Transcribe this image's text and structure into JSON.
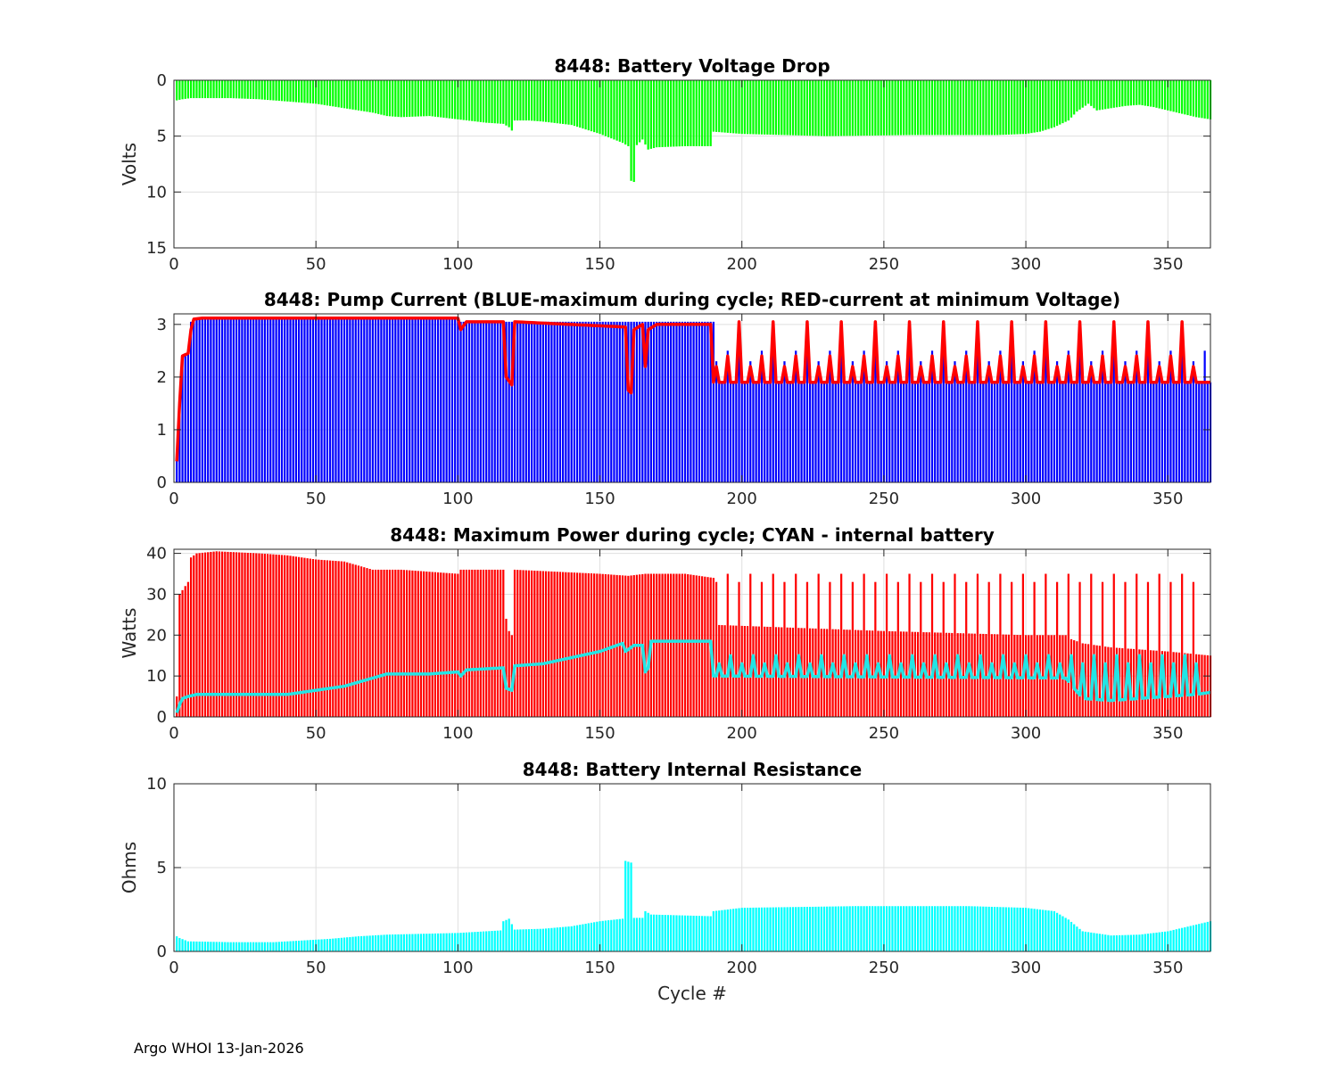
{
  "footer": "Argo WHOI 13-Jan-2026",
  "colors": {
    "green": "#00ff00",
    "blue": "#0000ff",
    "red": "#ff0000",
    "cyan": "#00ffff",
    "cyan_line": "#22e5e5",
    "axis": "#262626",
    "grid": "#dfdfdf"
  },
  "chart_data": [
    {
      "id": "voltage",
      "type": "bar",
      "title": "8448: Battery Voltage Drop",
      "xlabel": "",
      "ylabel": "Volts",
      "xlim": [
        0,
        365
      ],
      "ylim": [
        0,
        15
      ],
      "y_reversed": true,
      "xticks": [
        0,
        50,
        100,
        150,
        200,
        250,
        300,
        350
      ],
      "yticks": [
        0,
        5,
        10,
        15
      ],
      "grid": true,
      "series": [
        {
          "name": "Voltage drop",
          "color": "#00ff00",
          "style": "bar",
          "note": "value at every cycle 1-365, linear interpolation between points",
          "points": [
            [
              1,
              1.8
            ],
            [
              3,
              1.7
            ],
            [
              6,
              1.6
            ],
            [
              10,
              1.6
            ],
            [
              20,
              1.6
            ],
            [
              30,
              1.7
            ],
            [
              40,
              1.9
            ],
            [
              50,
              2.1
            ],
            [
              55,
              2.3
            ],
            [
              60,
              2.5
            ],
            [
              70,
              2.9
            ],
            [
              75,
              3.2
            ],
            [
              80,
              3.3
            ],
            [
              90,
              3.2
            ],
            [
              100,
              3.5
            ],
            [
              110,
              3.8
            ],
            [
              116,
              3.9
            ],
            [
              118,
              4.2
            ],
            [
              119,
              4.5
            ],
            [
              120,
              3.6
            ],
            [
              125,
              3.6
            ],
            [
              130,
              3.7
            ],
            [
              140,
              4.0
            ],
            [
              150,
              4.8
            ],
            [
              155,
              5.3
            ],
            [
              158,
              5.6
            ],
            [
              160,
              5.9
            ],
            [
              161,
              9.0
            ],
            [
              162,
              9.1
            ],
            [
              163,
              5.8
            ],
            [
              165,
              5.3
            ],
            [
              167,
              6.2
            ],
            [
              170,
              6.0
            ],
            [
              180,
              5.9
            ],
            [
              189,
              5.9
            ],
            [
              190,
              4.6
            ],
            [
              200,
              4.8
            ],
            [
              230,
              5.0
            ],
            [
              260,
              4.9
            ],
            [
              290,
              4.9
            ],
            [
              300,
              4.8
            ],
            [
              305,
              4.6
            ],
            [
              310,
              4.2
            ],
            [
              315,
              3.6
            ],
            [
              318,
              2.8
            ],
            [
              322,
              2.1
            ],
            [
              325,
              2.7
            ],
            [
              330,
              2.5
            ],
            [
              335,
              2.3
            ],
            [
              340,
              2.2
            ],
            [
              345,
              2.4
            ],
            [
              350,
              2.7
            ],
            [
              355,
              3.0
            ],
            [
              360,
              3.3
            ],
            [
              365,
              3.5
            ]
          ]
        }
      ]
    },
    {
      "id": "current",
      "type": "bar",
      "title": "8448: Pump Current (BLUE-maximum during cycle; RED-current at minimum Voltage)",
      "xlabel": "",
      "ylabel": "",
      "xlim": [
        0,
        365
      ],
      "ylim": [
        0,
        3.2
      ],
      "xticks": [
        0,
        50,
        100,
        150,
        200,
        250,
        300,
        350
      ],
      "yticks": [
        0,
        1,
        2,
        3
      ],
      "grid": true,
      "series": [
        {
          "name": "BLUE-maximum during cycle",
          "color": "#0000ff",
          "style": "bar",
          "points": [
            [
              1,
              0.5
            ],
            [
              2,
              1.6
            ],
            [
              3,
              2.4
            ],
            [
              4,
              2.45
            ],
            [
              5,
              2.5
            ],
            [
              6,
              3.05
            ],
            [
              7,
              3.1
            ],
            [
              100,
              3.1
            ],
            [
              101,
              3.05
            ],
            [
              190,
              3.05
            ],
            [
              191,
              1.9
            ],
            [
              365,
              1.9
            ]
          ],
          "spikes": {
            "from": 191,
            "to": 365,
            "every": 4,
            "values": [
              2.3,
              2.5,
              3.05
            ]
          }
        },
        {
          "name": "RED-current at minimum Voltage",
          "color": "#ff0000",
          "style": "line",
          "points": [
            [
              1,
              0.4
            ],
            [
              2,
              1.5
            ],
            [
              3,
              2.4
            ],
            [
              5,
              2.45
            ],
            [
              6,
              2.9
            ],
            [
              7,
              3.1
            ],
            [
              10,
              3.12
            ],
            [
              100,
              3.12
            ],
            [
              101,
              2.9
            ],
            [
              103,
              3.05
            ],
            [
              116,
              3.05
            ],
            [
              117,
              2.0
            ],
            [
              119,
              1.85
            ],
            [
              120,
              3.05
            ],
            [
              159,
              2.95
            ],
            [
              160,
              1.75
            ],
            [
              161,
              1.7
            ],
            [
              162,
              2.9
            ],
            [
              165,
              3.0
            ],
            [
              166,
              2.2
            ],
            [
              167,
              2.9
            ],
            [
              170,
              3.0
            ],
            [
              189,
              3.0
            ],
            [
              190,
              1.9
            ],
            [
              365,
              1.9
            ]
          ],
          "spikes": {
            "from": 191,
            "to": 362,
            "every": 4,
            "values": [
              2.2,
              2.4,
              3.05
            ]
          }
        }
      ]
    },
    {
      "id": "power",
      "type": "bar",
      "title": "8448: Maximum Power during cycle; CYAN - internal battery",
      "xlabel": "",
      "ylabel": "Watts",
      "xlim": [
        0,
        365
      ],
      "ylim": [
        0,
        41
      ],
      "xticks": [
        0,
        50,
        100,
        150,
        200,
        250,
        300,
        350
      ],
      "yticks": [
        0,
        10,
        20,
        30,
        40
      ],
      "grid": true,
      "series": [
        {
          "name": "Maximum Power",
          "color": "#ff0000",
          "style": "bar",
          "points": [
            [
              1,
              5
            ],
            [
              2,
              30
            ],
            [
              3,
              31
            ],
            [
              4,
              32
            ],
            [
              5,
              33
            ],
            [
              6,
              39
            ],
            [
              8,
              40
            ],
            [
              15,
              40.5
            ],
            [
              30,
              40
            ],
            [
              40,
              39.5
            ],
            [
              50,
              38.5
            ],
            [
              60,
              38
            ],
            [
              70,
              36
            ],
            [
              80,
              36
            ],
            [
              100,
              35
            ],
            [
              101,
              36
            ],
            [
              116,
              36
            ],
            [
              117,
              24
            ],
            [
              118,
              21
            ],
            [
              119,
              20
            ],
            [
              120,
              36
            ],
            [
              150,
              35
            ],
            [
              160,
              34.5
            ],
            [
              166,
              35
            ],
            [
              180,
              35
            ],
            [
              190,
              34
            ],
            [
              191,
              22.5
            ],
            [
              250,
              21
            ],
            [
              300,
              20
            ],
            [
              314,
              20
            ],
            [
              316,
              19
            ],
            [
              320,
              18
            ],
            [
              330,
              17
            ],
            [
              340,
              16.5
            ],
            [
              350,
              16
            ],
            [
              365,
              15
            ]
          ],
          "spikes": {
            "from": 191,
            "to": 360,
            "every": 4,
            "values": [
              33,
              35
            ]
          }
        },
        {
          "name": "CYAN - internal battery",
          "color": "#00ffff",
          "style": "line",
          "points": [
            [
              1,
              1
            ],
            [
              2,
              3
            ],
            [
              3,
              4.5
            ],
            [
              5,
              5
            ],
            [
              8,
              5.5
            ],
            [
              30,
              5.5
            ],
            [
              40,
              5.5
            ],
            [
              45,
              6
            ],
            [
              50,
              6.5
            ],
            [
              55,
              7
            ],
            [
              60,
              7.5
            ],
            [
              65,
              8.5
            ],
            [
              70,
              9.5
            ],
            [
              75,
              10.5
            ],
            [
              90,
              10.5
            ],
            [
              100,
              11
            ],
            [
              101,
              10
            ],
            [
              103,
              11.5
            ],
            [
              116,
              12
            ],
            [
              117,
              7
            ],
            [
              119,
              6.5
            ],
            [
              120,
              12.5
            ],
            [
              130,
              13
            ],
            [
              140,
              14.5
            ],
            [
              150,
              16
            ],
            [
              158,
              18
            ],
            [
              159,
              16
            ],
            [
              160,
              16.5
            ],
            [
              162,
              17.5
            ],
            [
              165,
              17.5
            ],
            [
              166,
              11
            ],
            [
              167,
              12
            ],
            [
              168,
              18.5
            ],
            [
              180,
              18.5
            ],
            [
              189,
              18.5
            ],
            [
              190,
              10
            ],
            [
              314,
              9.5
            ],
            [
              320,
              4.5
            ],
            [
              330,
              4
            ],
            [
              340,
              4.5
            ],
            [
              350,
              5
            ],
            [
              360,
              5.5
            ],
            [
              365,
              6
            ]
          ],
          "spikes": {
            "from": 192,
            "to": 362,
            "every": 4,
            "values": [
              13,
              15
            ]
          }
        }
      ]
    },
    {
      "id": "resistance",
      "type": "bar",
      "title": "8448: Battery Internal Resistance",
      "xlabel": "Cycle #",
      "ylabel": "Ohms",
      "xlim": [
        0,
        365
      ],
      "ylim": [
        0,
        10
      ],
      "xticks": [
        0,
        50,
        100,
        150,
        200,
        250,
        300,
        350
      ],
      "yticks": [
        0,
        5,
        10
      ],
      "grid": true,
      "series": [
        {
          "name": "Internal resistance",
          "color": "#00ffff",
          "style": "bar",
          "points": [
            [
              1,
              0.9
            ],
            [
              2,
              0.8
            ],
            [
              5,
              0.6
            ],
            [
              20,
              0.55
            ],
            [
              35,
              0.55
            ],
            [
              45,
              0.65
            ],
            [
              55,
              0.75
            ],
            [
              65,
              0.9
            ],
            [
              75,
              1.0
            ],
            [
              100,
              1.1
            ],
            [
              115,
              1.25
            ],
            [
              116,
              1.8
            ],
            [
              118,
              1.95
            ],
            [
              120,
              1.3
            ],
            [
              130,
              1.35
            ],
            [
              140,
              1.5
            ],
            [
              150,
              1.8
            ],
            [
              158,
              1.95
            ],
            [
              159,
              5.4
            ],
            [
              161,
              5.3
            ],
            [
              162,
              2.0
            ],
            [
              165,
              2.0
            ],
            [
              166,
              2.4
            ],
            [
              168,
              2.2
            ],
            [
              189,
              2.1
            ],
            [
              190,
              2.4
            ],
            [
              200,
              2.6
            ],
            [
              240,
              2.7
            ],
            [
              280,
              2.7
            ],
            [
              300,
              2.6
            ],
            [
              310,
              2.4
            ],
            [
              315,
              1.9
            ],
            [
              320,
              1.2
            ],
            [
              330,
              0.95
            ],
            [
              340,
              1.0
            ],
            [
              350,
              1.2
            ],
            [
              360,
              1.6
            ],
            [
              365,
              1.8
            ]
          ]
        }
      ]
    }
  ]
}
